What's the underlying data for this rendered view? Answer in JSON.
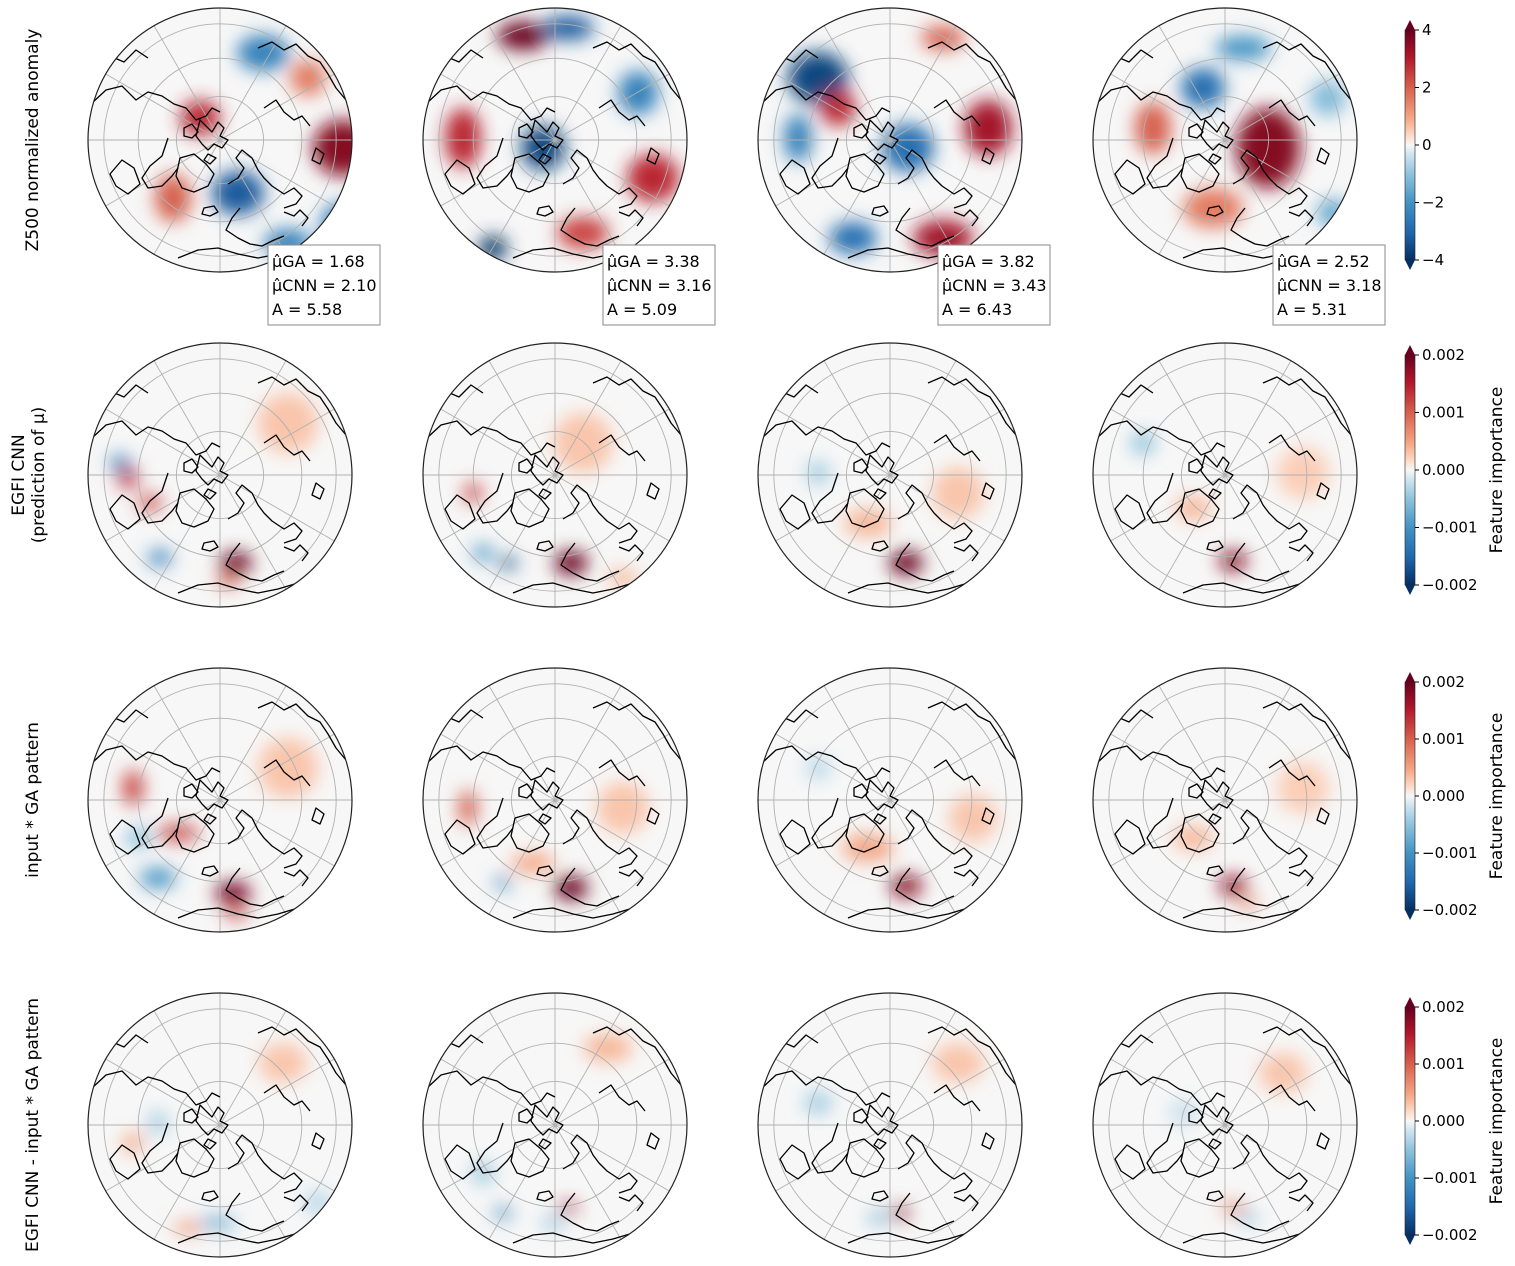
{
  "chart_data": {
    "type": "heatmap",
    "projection": "north-polar-stereographic",
    "colormap": "RdBu_r (blue negative, white zero, red positive)",
    "grid": true,
    "rows": [
      {
        "label": "Z500 normalized anomaly",
        "colorbar": {
          "ticks": [
            "4",
            "2",
            "0",
            "−2",
            "−4"
          ],
          "label": "",
          "range": [
            -4,
            4
          ]
        },
        "panels": [
          {
            "stats": [
              "μ̂GA = 1.68",
              "μ̂CNN = 2.10",
              "A = 5.58"
            ],
            "blobs": [
              [
                255,
                140,
                0.9,
                30,
                28
              ],
              [
                112,
                110,
                0.7,
                20,
                18
              ],
              [
                175,
                45,
                -0.6,
                26,
                18
              ],
              [
                255,
                215,
                -0.6,
                22,
                20
              ],
              [
                150,
                185,
                -0.8,
                26,
                22
              ],
              [
                200,
                235,
                -0.6,
                24,
                14
              ],
              [
                85,
                190,
                0.5,
                18,
                24
              ],
              [
                220,
                70,
                0.4,
                18,
                18
              ]
            ]
          },
          {
            "stats": [
              "μ̂GA = 3.38",
              "μ̂CNN = 3.16",
              "A = 5.09"
            ],
            "blobs": [
              [
                100,
                28,
                1.0,
                26,
                14
              ],
              [
                145,
                20,
                -0.8,
                26,
                12
              ],
              [
                120,
                140,
                -0.9,
                22,
                22
              ],
              [
                70,
                240,
                -1.0,
                14,
                12
              ],
              [
                40,
                130,
                0.7,
                18,
                30
              ],
              [
                230,
                170,
                0.7,
                26,
                24
              ],
              [
                215,
                85,
                -0.6,
                20,
                22
              ],
              [
                160,
                225,
                0.6,
                26,
                16
              ]
            ]
          },
          {
            "stats": [
              "μ̂GA = 3.82",
              "μ̂CNN = 3.43",
              "A = 6.43"
            ],
            "blobs": [
              [
                60,
                70,
                -0.9,
                30,
                26
              ],
              [
                150,
                140,
                -0.7,
                26,
                24
              ],
              [
                230,
                120,
                0.8,
                24,
                28
              ],
              [
                185,
                230,
                0.8,
                30,
                18
              ],
              [
                95,
                230,
                -0.7,
                24,
                16
              ],
              [
                80,
                100,
                0.7,
                18,
                18
              ],
              [
                185,
                30,
                0.5,
                22,
                12
              ],
              [
                40,
                130,
                -0.6,
                14,
                24
              ]
            ]
          },
          {
            "stats": [
              "μ̂GA = 2.52",
              "μ̂CNN = 3.18",
              "A = 5.31"
            ],
            "blobs": [
              [
                175,
                140,
                0.9,
                32,
                40
              ],
              [
                110,
                80,
                -0.7,
                22,
                20
              ],
              [
                60,
                120,
                0.5,
                18,
                26
              ],
              [
                150,
                40,
                -0.5,
                28,
                12
              ],
              [
                120,
                200,
                0.4,
                30,
                20
              ],
              [
                235,
                90,
                -0.3,
                18,
                18
              ],
              [
                240,
                205,
                -0.4,
                16,
                14
              ]
            ]
          }
        ]
      },
      {
        "label": "EGFI CNN",
        "sublabel": "(prediction of μ)",
        "colorbar": {
          "ticks": [
            "0.002",
            "0.001",
            "0.000",
            "−0.001",
            "−0.002"
          ],
          "label": "Feature importance",
          "range": [
            -0.002,
            0.002
          ]
        },
        "panels": [
          {
            "blobs": [
              [
                148,
                220,
                1.0,
                16,
                11
              ],
              [
                40,
                135,
                0.7,
                10,
                10
              ],
              [
                62,
                160,
                0.6,
                12,
                8
              ],
              [
                32,
                120,
                -0.6,
                10,
                8
              ],
              [
                72,
                215,
                -0.6,
                12,
                8
              ],
              [
                140,
                238,
                0.5,
                12,
                6
              ],
              [
                200,
                80,
                0.15,
                30,
                30
              ]
            ]
          },
          {
            "blobs": [
              [
                148,
                220,
                1.0,
                17,
                12
              ],
              [
                50,
                150,
                0.6,
                9,
                10
              ],
              [
                85,
                220,
                -0.9,
                9,
                6
              ],
              [
                60,
                210,
                -0.5,
                10,
                8
              ],
              [
                160,
                100,
                0.15,
                30,
                30
              ],
              [
                200,
                235,
                0.2,
                16,
                8
              ]
            ]
          },
          {
            "blobs": [
              [
                148,
                220,
                1.0,
                17,
                12
              ],
              [
                110,
                180,
                0.2,
                24,
                14
              ],
              [
                60,
                130,
                -0.2,
                12,
                12
              ],
              [
                200,
                150,
                0.15,
                26,
                26
              ]
            ]
          },
          {
            "blobs": [
              [
                140,
                218,
                0.9,
                14,
                10
              ],
              [
                100,
                165,
                0.2,
                18,
                12
              ],
              [
                50,
                100,
                -0.25,
                12,
                12
              ],
              [
                210,
                130,
                0.12,
                26,
                26
              ]
            ]
          }
        ]
      },
      {
        "label": "input * GA pattern",
        "colorbar": {
          "ticks": [
            "0.002",
            "0.001",
            "0.000",
            "−0.001",
            "−0.002"
          ],
          "label": "Feature importance",
          "range": [
            -0.002,
            0.002
          ]
        },
        "panels": [
          {
            "blobs": [
              [
                145,
                225,
                0.95,
                18,
                11
              ],
              [
                148,
                245,
                0.6,
                12,
                6
              ],
              [
                45,
                120,
                0.6,
                10,
                18
              ],
              [
                90,
                165,
                0.6,
                22,
                8
              ],
              [
                70,
                210,
                -0.5,
                18,
                10
              ],
              [
                200,
                100,
                0.15,
                30,
                30
              ],
              [
                50,
                170,
                -0.3,
                12,
                10
              ]
            ]
          },
          {
            "blobs": [
              [
                148,
                220,
                1.0,
                17,
                12
              ],
              [
                45,
                140,
                0.5,
                9,
                18
              ],
              [
                80,
                215,
                -0.6,
                8,
                6
              ],
              [
                200,
                140,
                0.15,
                26,
                26
              ],
              [
                110,
                195,
                0.25,
                22,
                10
              ]
            ]
          },
          {
            "blobs": [
              [
                148,
                218,
                0.9,
                16,
                11
              ],
              [
                110,
                180,
                0.25,
                26,
                14
              ],
              [
                60,
                100,
                -0.15,
                12,
                12
              ],
              [
                215,
                150,
                0.15,
                24,
                24
              ]
            ]
          },
          {
            "blobs": [
              [
                140,
                218,
                0.85,
                14,
                10
              ],
              [
                155,
                235,
                0.35,
                10,
                6
              ],
              [
                100,
                170,
                0.2,
                20,
                12
              ],
              [
                210,
                120,
                0.12,
                26,
                26
              ]
            ]
          }
        ]
      },
      {
        "label": "EGFI CNN - input * GA pattern",
        "colorbar": {
          "ticks": [
            "0.002",
            "0.001",
            "0.000",
            "−0.001",
            "−0.002"
          ],
          "label": "Feature importance",
          "range": [
            -0.002,
            0.002
          ]
        },
        "panels": [
          {
            "blobs": [
              [
                130,
                230,
                -0.4,
                18,
                6
              ],
              [
                100,
                235,
                0.3,
                14,
                6
              ],
              [
                45,
                150,
                0.25,
                10,
                10
              ],
              [
                70,
                130,
                -0.2,
                10,
                12
              ],
              [
                195,
                70,
                0.15,
                24,
                20
              ],
              [
                230,
                210,
                -0.15,
                14,
                12
              ]
            ]
          },
          {
            "blobs": [
              [
                145,
                215,
                0.8,
                10,
                5
              ],
              [
                80,
                220,
                -0.6,
                8,
                6
              ],
              [
                130,
                230,
                -0.3,
                12,
                5
              ],
              [
                185,
                55,
                0.2,
                24,
                14
              ],
              [
                60,
                180,
                -0.2,
                12,
                12
              ]
            ]
          },
          {
            "blobs": [
              [
                142,
                220,
                0.9,
                9,
                6
              ],
              [
                120,
                225,
                -0.4,
                10,
                5
              ],
              [
                200,
                70,
                0.15,
                26,
                20
              ],
              [
                60,
                110,
                -0.2,
                14,
                12
              ]
            ]
          },
          {
            "blobs": [
              [
                140,
                215,
                0.35,
                12,
                6
              ],
              [
                155,
                225,
                -0.25,
                10,
                6
              ],
              [
                190,
                80,
                0.15,
                24,
                20
              ],
              [
                90,
                120,
                -0.1,
                14,
                14
              ]
            ]
          }
        ]
      }
    ]
  }
}
